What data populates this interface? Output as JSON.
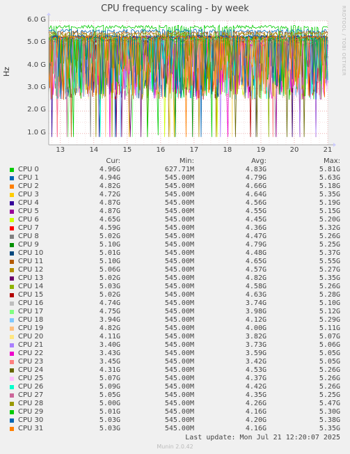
{
  "title": "CPU frequency scaling - by week",
  "side_text": "RRDTOOL / TOBI OETIKER",
  "chart_data": {
    "type": "line",
    "title": "CPU frequency scaling - by week",
    "ylabel": "Hz",
    "ylim": [
      0.5,
      6.0
    ],
    "yunit": "G",
    "yticks": [
      "1.0 G",
      "2.0 G",
      "3.0 G",
      "4.0 G",
      "5.0 G",
      "6.0 G"
    ],
    "ytick_values": [
      1.0,
      2.0,
      3.0,
      4.0,
      5.0,
      6.0
    ],
    "xticks": [
      "13",
      "14",
      "15",
      "16",
      "17",
      "18",
      "19",
      "20",
      "21"
    ],
    "xlim": [
      12.65,
      21.0
    ],
    "grid": true,
    "columns": [
      "Cur:",
      "Min:",
      "Avg:",
      "Max:"
    ],
    "series": [
      {
        "name": "CPU 0",
        "color": "#00cc00",
        "cur": "4.96G",
        "min": "627.71M",
        "avg": "4.83G",
        "max": "5.81G"
      },
      {
        "name": "CPU 1",
        "color": "#0066b3",
        "cur": "4.94G",
        "min": "545.00M",
        "avg": "4.79G",
        "max": "5.63G"
      },
      {
        "name": "CPU 2",
        "color": "#ff8000",
        "cur": "4.82G",
        "min": "545.00M",
        "avg": "4.66G",
        "max": "5.18G"
      },
      {
        "name": "CPU 3",
        "color": "#ffcc00",
        "cur": "4.72G",
        "min": "545.00M",
        "avg": "4.64G",
        "max": "5.35G"
      },
      {
        "name": "CPU 4",
        "color": "#330099",
        "cur": "4.87G",
        "min": "545.00M",
        "avg": "4.56G",
        "max": "5.19G"
      },
      {
        "name": "CPU 5",
        "color": "#990099",
        "cur": "4.87G",
        "min": "545.00M",
        "avg": "4.55G",
        "max": "5.15G"
      },
      {
        "name": "CPU 6",
        "color": "#ccff00",
        "cur": "4.65G",
        "min": "545.00M",
        "avg": "4.45G",
        "max": "5.20G"
      },
      {
        "name": "CPU 7",
        "color": "#ff0000",
        "cur": "4.59G",
        "min": "545.00M",
        "avg": "4.36G",
        "max": "5.32G"
      },
      {
        "name": "CPU 8",
        "color": "#808080",
        "cur": "5.02G",
        "min": "545.00M",
        "avg": "4.47G",
        "max": "5.26G"
      },
      {
        "name": "CPU 9",
        "color": "#008f00",
        "cur": "5.10G",
        "min": "545.00M",
        "avg": "4.79G",
        "max": "5.25G"
      },
      {
        "name": "CPU 10",
        "color": "#00487d",
        "cur": "5.01G",
        "min": "545.00M",
        "avg": "4.48G",
        "max": "5.37G"
      },
      {
        "name": "CPU 11",
        "color": "#b35a00",
        "cur": "5.10G",
        "min": "545.00M",
        "avg": "4.65G",
        "max": "5.55G"
      },
      {
        "name": "CPU 12",
        "color": "#b38f00",
        "cur": "5.06G",
        "min": "545.00M",
        "avg": "4.57G",
        "max": "5.27G"
      },
      {
        "name": "CPU 13",
        "color": "#6b006b",
        "cur": "5.02G",
        "min": "545.00M",
        "avg": "4.82G",
        "max": "5.35G"
      },
      {
        "name": "CPU 14",
        "color": "#8fb300",
        "cur": "5.03G",
        "min": "545.00M",
        "avg": "4.58G",
        "max": "5.26G"
      },
      {
        "name": "CPU 15",
        "color": "#b30000",
        "cur": "5.02G",
        "min": "545.00M",
        "avg": "4.63G",
        "max": "5.28G"
      },
      {
        "name": "CPU 16",
        "color": "#bebebe",
        "cur": "4.74G",
        "min": "545.00M",
        "avg": "3.74G",
        "max": "5.10G"
      },
      {
        "name": "CPU 17",
        "color": "#80ff80",
        "cur": "4.75G",
        "min": "545.00M",
        "avg": "3.98G",
        "max": "5.12G"
      },
      {
        "name": "CPU 18",
        "color": "#80c9ff",
        "cur": "3.94G",
        "min": "545.00M",
        "avg": "4.12G",
        "max": "5.29G"
      },
      {
        "name": "CPU 19",
        "color": "#ffc080",
        "cur": "4.82G",
        "min": "545.00M",
        "avg": "4.00G",
        "max": "5.11G"
      },
      {
        "name": "CPU 20",
        "color": "#ffe680",
        "cur": "4.11G",
        "min": "545.00M",
        "avg": "3.82G",
        "max": "5.07G"
      },
      {
        "name": "CPU 21",
        "color": "#aa80ff",
        "cur": "3.40G",
        "min": "545.00M",
        "avg": "3.73G",
        "max": "5.06G"
      },
      {
        "name": "CPU 22",
        "color": "#ee00cc",
        "cur": "3.43G",
        "min": "545.00M",
        "avg": "3.59G",
        "max": "5.05G"
      },
      {
        "name": "CPU 23",
        "color": "#ff8080",
        "cur": "3.45G",
        "min": "545.00M",
        "avg": "3.42G",
        "max": "5.05G"
      },
      {
        "name": "CPU 24",
        "color": "#666600",
        "cur": "4.31G",
        "min": "545.00M",
        "avg": "4.53G",
        "max": "5.26G"
      },
      {
        "name": "CPU 25",
        "color": "#ffbfff",
        "cur": "5.07G",
        "min": "545.00M",
        "avg": "4.37G",
        "max": "5.26G"
      },
      {
        "name": "CPU 26",
        "color": "#00ffcc",
        "cur": "5.09G",
        "min": "545.00M",
        "avg": "4.42G",
        "max": "5.26G"
      },
      {
        "name": "CPU 27",
        "color": "#cc6699",
        "cur": "5.05G",
        "min": "545.00M",
        "avg": "4.35G",
        "max": "5.25G"
      },
      {
        "name": "CPU 28",
        "color": "#999900",
        "cur": "5.00G",
        "min": "545.00M",
        "avg": "4.26G",
        "max": "5.47G"
      },
      {
        "name": "CPU 29",
        "color": "#00cc00",
        "cur": "5.01G",
        "min": "545.00M",
        "avg": "4.16G",
        "max": "5.30G"
      },
      {
        "name": "CPU 30",
        "color": "#0066b3",
        "cur": "5.03G",
        "min": "545.00M",
        "avg": "4.20G",
        "max": "5.38G"
      },
      {
        "name": "CPU 31",
        "color": "#ff8000",
        "cur": "5.03G",
        "min": "545.00M",
        "avg": "4.16G",
        "max": "5.35G"
      }
    ]
  },
  "last_update": "Last update: Mon Jul 21 12:20:07 2025",
  "footer": "Munin 2.0.42"
}
